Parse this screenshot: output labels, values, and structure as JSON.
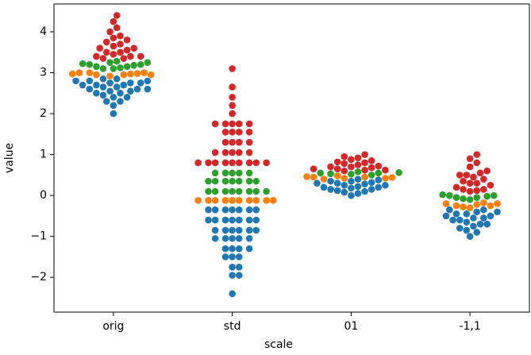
{
  "chart_data": {
    "type": "swarm",
    "xlabel": "scale",
    "ylabel": "value",
    "categories": [
      "orig",
      "std",
      "01",
      "-1,1"
    ],
    "ylim": [
      -2.85,
      4.68
    ],
    "yticks": [
      {
        "value": -2,
        "label": "−2"
      },
      {
        "value": -1,
        "label": "−1"
      },
      0,
      1,
      2,
      3,
      4
    ],
    "series": [
      {
        "color": "#1f77b4",
        "values": [
          [
            2.0,
            2.2,
            2.3,
            2.3,
            2.4,
            2.4,
            2.45,
            2.5,
            2.5,
            2.55,
            2.55,
            2.6,
            2.6,
            2.6,
            2.65,
            2.65,
            2.7,
            2.7,
            2.7,
            2.75,
            2.75,
            2.75,
            2.8,
            2.8,
            2.8,
            2.85,
            2.85
          ],
          [
            -2.4,
            -1.95,
            -1.95,
            -1.75,
            -1.75,
            -1.5,
            -1.5,
            -1.5,
            -1.3,
            -1.3,
            -1.3,
            -1.3,
            -1.05,
            -1.05,
            -1.05,
            -1.05,
            -1.05,
            -0.85,
            -0.85,
            -0.85,
            -0.85,
            -0.85,
            -0.85,
            -0.6,
            -0.6,
            -0.6,
            -0.6,
            -0.6,
            -0.6,
            -0.6,
            -0.35,
            -0.35,
            -0.35,
            -0.35,
            -0.35,
            -0.35,
            -0.35
          ],
          [
            0.0,
            0.05,
            0.08,
            0.1,
            0.12,
            0.15,
            0.15,
            0.18,
            0.2,
            0.2,
            0.22,
            0.25,
            0.25,
            0.28,
            0.3,
            0.3,
            0.32,
            0.35,
            0.35,
            0.38,
            0.4
          ],
          [
            -1.0,
            -0.9,
            -0.85,
            -0.8,
            -0.75,
            -0.7,
            -0.7,
            -0.65,
            -0.6,
            -0.6,
            -0.55,
            -0.55,
            -0.5,
            -0.5,
            -0.45,
            -0.45,
            -0.4,
            -0.4,
            -0.35,
            -0.35
          ]
        ]
      },
      {
        "color": "#ff7f0e",
        "values": [
          [
            2.92,
            2.95,
            2.95,
            2.97,
            2.98,
            3.0,
            3.0,
            3.0,
            2.95,
            2.97
          ],
          [
            -0.12,
            -0.12,
            -0.12,
            -0.12,
            -0.12,
            -0.12,
            -0.12,
            -0.12,
            -0.12,
            -0.12
          ],
          [
            0.4,
            0.42,
            0.42,
            0.44,
            0.45,
            0.45,
            0.46,
            0.48
          ],
          [
            -0.3,
            -0.28,
            -0.25,
            -0.25,
            -0.22,
            -0.2,
            -0.2,
            -0.18
          ]
        ]
      },
      {
        "color": "#2ca02c",
        "values": [
          [
            3.1,
            3.1,
            3.12,
            3.15,
            3.15,
            3.18,
            3.2,
            3.2,
            3.22,
            3.25,
            3.25,
            3.28
          ],
          [
            0.1,
            0.1,
            0.1,
            0.1,
            0.1,
            0.1,
            0.1,
            0.1,
            0.35,
            0.35,
            0.35,
            0.35,
            0.35,
            0.35,
            0.35,
            0.55,
            0.55,
            0.55,
            0.55,
            0.55
          ],
          [
            0.5,
            0.52,
            0.53,
            0.55,
            0.55,
            0.56,
            0.58
          ],
          [
            -0.1,
            -0.08,
            -0.05,
            -0.05,
            -0.02,
            0.0,
            0.0,
            0.02
          ]
        ]
      },
      {
        "color": "#d62728",
        "values": [
          [
            3.35,
            3.35,
            3.4,
            3.4,
            3.4,
            3.45,
            3.5,
            3.5,
            3.55,
            3.6,
            3.6,
            3.65,
            3.7,
            3.75,
            3.8,
            3.85,
            3.9,
            4.0,
            4.1,
            4.25,
            4.4
          ],
          [
            0.8,
            0.8,
            0.8,
            0.8,
            0.8,
            0.8,
            0.8,
            0.8,
            0.8,
            1.05,
            1.05,
            1.05,
            1.05,
            1.05,
            1.3,
            1.3,
            1.3,
            1.3,
            1.55,
            1.55,
            1.55,
            1.55,
            1.75,
            1.75,
            1.75,
            1.75,
            1.75,
            2.0,
            2.2,
            2.4,
            2.65,
            3.1
          ],
          [
            0.6,
            0.62,
            0.62,
            0.65,
            0.65,
            0.68,
            0.7,
            0.7,
            0.72,
            0.75,
            0.78,
            0.8,
            0.82,
            0.85,
            0.88,
            0.92,
            0.95,
            1.0
          ],
          [
            0.1,
            0.12,
            0.15,
            0.15,
            0.2,
            0.25,
            0.3,
            0.3,
            0.35,
            0.4,
            0.45,
            0.5,
            0.5,
            0.55,
            0.6,
            0.7,
            0.8,
            0.9,
            1.0
          ]
        ]
      }
    ]
  }
}
